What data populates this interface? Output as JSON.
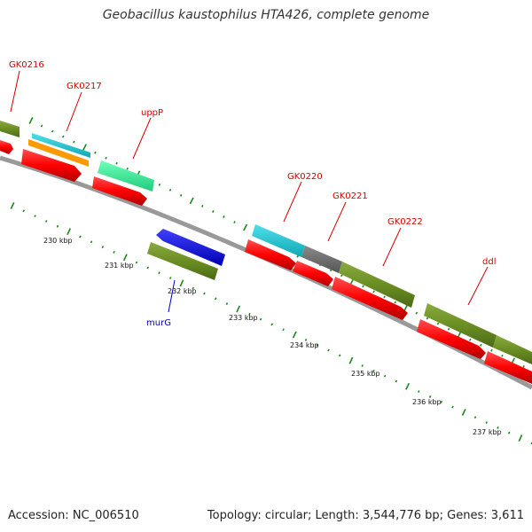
{
  "title": "Geobacillus kaustophilus HTA426, complete genome",
  "footer": {
    "accession": "Accession: NC_006510",
    "topology": "Topology: circular; Length: 3,544,776 bp; Genes: 3,611"
  },
  "colors": {
    "backbone": "#888888",
    "gene_label": "#d40000",
    "murG_label": "#0000c0",
    "tick": "#1a8a1a",
    "cds": "#ff0000",
    "olive": "#6b8e23",
    "cyan": "#17c8d6",
    "orange": "#ff9900",
    "teal": "#33ff99",
    "blue": "#0000ff",
    "gray": "#666666"
  },
  "kbp_labels": [
    "230 kbp",
    "231 kbp",
    "232 kbp",
    "233 kbp",
    "234 kbp",
    "235 kbp",
    "236 kbp",
    "237 kbp"
  ],
  "gene_labels": [
    {
      "text": "GK0216",
      "color": "red"
    },
    {
      "text": "GK0217",
      "color": "red"
    },
    {
      "text": "uppP",
      "color": "red"
    },
    {
      "text": "GK0220",
      "color": "red"
    },
    {
      "text": "GK0221",
      "color": "red"
    },
    {
      "text": "GK0222",
      "color": "red"
    },
    {
      "text": "ddl",
      "color": "red"
    },
    {
      "text": "murG",
      "color": "blue"
    }
  ]
}
